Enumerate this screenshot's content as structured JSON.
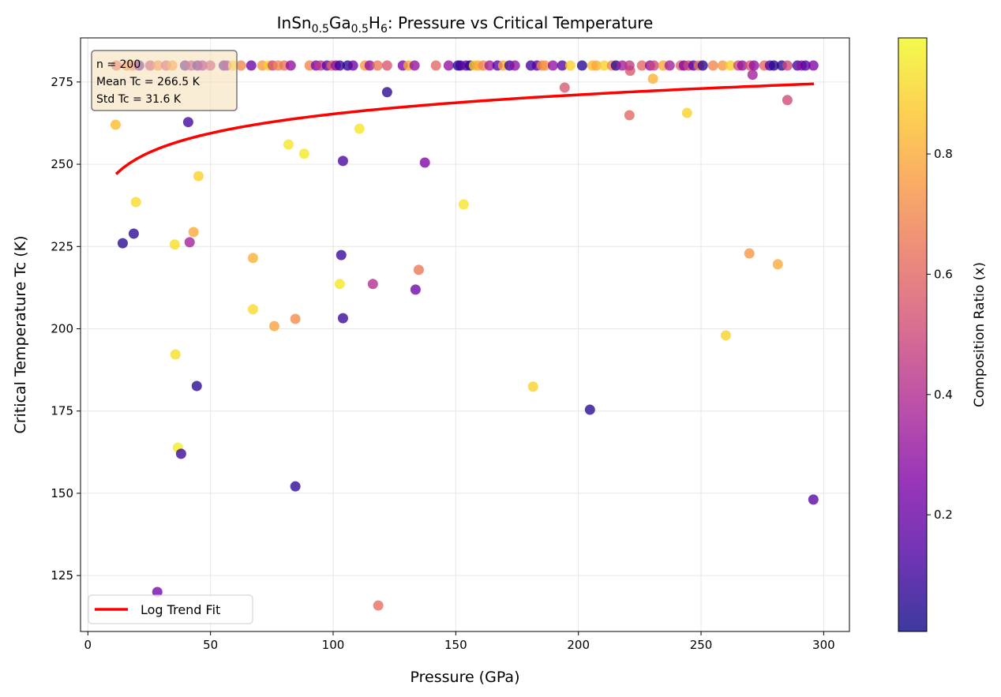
{
  "chart_data": {
    "type": "scatter",
    "title": {
      "parts": [
        "InSn",
        "0.5",
        "Ga",
        "0.5",
        "H",
        "6",
        ": Pressure vs Critical Temperature"
      ]
    },
    "xlabel": "Pressure (GPa)",
    "ylabel": "Critical Temperature Tc (K)",
    "xlim": [
      -3,
      310.5
    ],
    "ylim": [
      108,
      288.4
    ],
    "xticks": [
      0,
      50,
      100,
      150,
      200,
      250,
      300
    ],
    "yticks": [
      125,
      150,
      175,
      200,
      225,
      250,
      275
    ],
    "grid": true,
    "colormap": "plasma",
    "colorbar": {
      "label": "Composition Ratio (x)",
      "range": [
        0.006,
        0.993
      ],
      "ticks": [
        0.2,
        0.4,
        0.6,
        0.8
      ]
    },
    "stats_box": {
      "lines": [
        "n = 200",
        "Mean Tc = 266.5 K",
        "Std Tc = 31.6 K"
      ],
      "placement": "top-left"
    },
    "legend": {
      "entries": [
        "Log Trend Fit"
      ],
      "placement": "lower-left"
    },
    "fit": {
      "type": "log",
      "a": 226.4,
      "b": 8.44,
      "x_range": [
        11.5,
        296
      ],
      "color": "#ff0000"
    },
    "points": [
      [
        11.3,
        262.0,
        0.85
      ],
      [
        40.9,
        262.8,
        0.1
      ],
      [
        122.0,
        271.9,
        0.05
      ],
      [
        110.7,
        260.8,
        0.95
      ],
      [
        81.8,
        256.0,
        0.95
      ],
      [
        88.2,
        253.2,
        0.96
      ],
      [
        104.0,
        251.0,
        0.12
      ],
      [
        137.4,
        250.5,
        0.25
      ],
      [
        45.1,
        246.4,
        0.9
      ],
      [
        19.6,
        238.5,
        0.92
      ],
      [
        153.2,
        237.8,
        0.95
      ],
      [
        14.2,
        226.0,
        0.05
      ],
      [
        18.7,
        228.9,
        0.05
      ],
      [
        43.1,
        229.4,
        0.8
      ],
      [
        41.5,
        226.3,
        0.35
      ],
      [
        35.4,
        225.6,
        0.93
      ],
      [
        67.3,
        221.5,
        0.82
      ],
      [
        103.3,
        222.4,
        0.08
      ],
      [
        134.9,
        217.9,
        0.65
      ],
      [
        116.2,
        213.6,
        0.4
      ],
      [
        102.7,
        213.6,
        0.95
      ],
      [
        133.6,
        211.9,
        0.2
      ],
      [
        67.3,
        205.9,
        0.92
      ],
      [
        76.0,
        200.8,
        0.78
      ],
      [
        84.6,
        203.0,
        0.72
      ],
      [
        104.0,
        203.2,
        0.08
      ],
      [
        35.7,
        192.2,
        0.93
      ],
      [
        44.4,
        182.6,
        0.05
      ],
      [
        36.7,
        163.9,
        0.97
      ],
      [
        38.0,
        162.0,
        0.08
      ],
      [
        84.6,
        152.1,
        0.05
      ],
      [
        28.3,
        120.0,
        0.22
      ],
      [
        118.4,
        115.9,
        0.62
      ],
      [
        181.5,
        182.4,
        0.9
      ],
      [
        204.7,
        175.4,
        0.05
      ],
      [
        194.4,
        273.3,
        0.55
      ],
      [
        220.8,
        264.9,
        0.6
      ],
      [
        221.1,
        278.4,
        0.55
      ],
      [
        230.4,
        276.0,
        0.82
      ],
      [
        244.3,
        265.6,
        0.9
      ],
      [
        271.0,
        277.2,
        0.35
      ],
      [
        285.2,
        269.5,
        0.5
      ],
      [
        269.7,
        222.9,
        0.75
      ],
      [
        281.3,
        219.6,
        0.8
      ],
      [
        260.1,
        198.0,
        0.9
      ],
      [
        295.8,
        148.1,
        0.15
      ],
      [
        11.6,
        280,
        0.6
      ],
      [
        15.8,
        280,
        0.7
      ],
      [
        18.3,
        280,
        0.65
      ],
      [
        20.9,
        280,
        0.15
      ],
      [
        25.4,
        280,
        0.45
      ],
      [
        28.6,
        280,
        0.7
      ],
      [
        31.9,
        280,
        0.5
      ],
      [
        34.4,
        280,
        0.75
      ],
      [
        39.6,
        280,
        0.1
      ],
      [
        42.2,
        280,
        0.4
      ],
      [
        44.7,
        280,
        0.1
      ],
      [
        46.7,
        280,
        0.3
      ],
      [
        49.9,
        280,
        0.45
      ],
      [
        55.4,
        280,
        0.05
      ],
      [
        56.6,
        280,
        0.3
      ],
      [
        59.2,
        280,
        0.9
      ],
      [
        62.4,
        280,
        0.7
      ],
      [
        66.6,
        280,
        0.2
      ],
      [
        71.1,
        280,
        0.75
      ],
      [
        73.7,
        280,
        0.9
      ],
      [
        75.3,
        280,
        0.5
      ],
      [
        77.6,
        280,
        0.7
      ],
      [
        80.1,
        280,
        0.65
      ],
      [
        82.7,
        280,
        0.3
      ],
      [
        90.4,
        280,
        0.7
      ],
      [
        93.0,
        280,
        0.25
      ],
      [
        94.9,
        280,
        0.45
      ],
      [
        97.5,
        280,
        0.15
      ],
      [
        99.5,
        280,
        0.6
      ],
      [
        101.1,
        280,
        0.3
      ],
      [
        102.7,
        280,
        0.1
      ],
      [
        105.9,
        280,
        0.05
      ],
      [
        108.1,
        280,
        0.2
      ],
      [
        113.0,
        280,
        0.75
      ],
      [
        114.9,
        280,
        0.3
      ],
      [
        118.1,
        280,
        0.65
      ],
      [
        122.0,
        280,
        0.55
      ],
      [
        128.4,
        280,
        0.25
      ],
      [
        130.7,
        280,
        0.8
      ],
      [
        133.2,
        280,
        0.3
      ],
      [
        141.9,
        280,
        0.6
      ],
      [
        147.1,
        280,
        0.3
      ],
      [
        150.9,
        280,
        0.05
      ],
      [
        151.9,
        280,
        0.1
      ],
      [
        154.2,
        280,
        0.2
      ],
      [
        155.8,
        280,
        0.05
      ],
      [
        157.4,
        280,
        0.9
      ],
      [
        159.0,
        280,
        0.8
      ],
      [
        161.2,
        280,
        0.7
      ],
      [
        163.8,
        280,
        0.35
      ],
      [
        167.0,
        280,
        0.15
      ],
      [
        169.3,
        280,
        0.8
      ],
      [
        171.9,
        280,
        0.1
      ],
      [
        174.1,
        280,
        0.3
      ],
      [
        180.6,
        280,
        0.1
      ],
      [
        183.1,
        280,
        0.15
      ],
      [
        185.1,
        280,
        0.7
      ],
      [
        186.4,
        280,
        0.75
      ],
      [
        189.6,
        280,
        0.3
      ],
      [
        193.4,
        280,
        0.15
      ],
      [
        196.7,
        280,
        0.9
      ],
      [
        201.5,
        280,
        0.05
      ],
      [
        205.7,
        280,
        0.85
      ],
      [
        207.3,
        280,
        0.8
      ],
      [
        210.5,
        280,
        0.9
      ],
      [
        213.7,
        280,
        0.7
      ],
      [
        215.3,
        280,
        0.05
      ],
      [
        217.9,
        280,
        0.35
      ],
      [
        220.8,
        280,
        0.45
      ],
      [
        225.9,
        280,
        0.6
      ],
      [
        229.2,
        280,
        0.3
      ],
      [
        230.8,
        280,
        0.5
      ],
      [
        234.6,
        280,
        0.8
      ],
      [
        237.2,
        280,
        0.35
      ],
      [
        241.7,
        280,
        0.6
      ],
      [
        243.0,
        280,
        0.25
      ],
      [
        244.9,
        280,
        0.5
      ],
      [
        246.9,
        280,
        0.15
      ],
      [
        249.1,
        280,
        0.65
      ],
      [
        250.7,
        280,
        0.05
      ],
      [
        254.9,
        280,
        0.7
      ],
      [
        258.8,
        280,
        0.75
      ],
      [
        262.0,
        280,
        0.9
      ],
      [
        265.2,
        280,
        0.5
      ],
      [
        266.8,
        280,
        0.3
      ],
      [
        270.0,
        280,
        0.55
      ],
      [
        271.6,
        280,
        0.3
      ],
      [
        275.8,
        280,
        0.6
      ],
      [
        278.1,
        280,
        0.15
      ],
      [
        279.7,
        280,
        0.05
      ],
      [
        282.9,
        280,
        0.05
      ],
      [
        285.2,
        280,
        0.5
      ],
      [
        289.3,
        280,
        0.1
      ],
      [
        291.0,
        280,
        0.3
      ],
      [
        292.6,
        280,
        0.15
      ],
      [
        295.8,
        280,
        0.25
      ]
    ]
  }
}
